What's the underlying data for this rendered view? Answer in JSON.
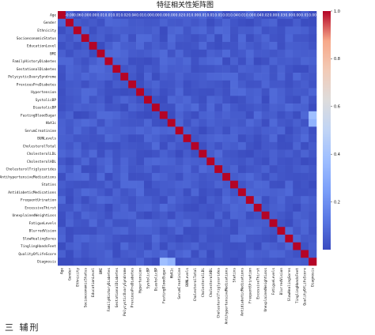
{
  "chart_data": {
    "type": "heatmap",
    "title": "特征相关性矩阵图",
    "labels": [
      "Age",
      "Gender",
      "Ethnicity",
      "SocioeconomicStatus",
      "EducationLevel",
      "BMI",
      "FamilyHistoryDiabetes",
      "GestationalDiabetes",
      "PolycysticOvarySyndrome",
      "PreviousPreDiabetes",
      "Hypertension",
      "SystolicBP",
      "DiastolicBP",
      "FastingBloodSugar",
      "HbA1c",
      "SerumCreatinine",
      "BUNLevels",
      "CholesterolTotal",
      "CholesterolLDL",
      "CholesterolHDL",
      "CholesterolTriglycerides",
      "AntihypertensiveMedications",
      "Statins",
      "AntidiabeticMedications",
      "FrequentUrination",
      "ExcessiveThirst",
      "UnexplainedWeightLoss",
      "FatigueLevels",
      "BlurredVision",
      "SlowHealingSores",
      "TinglingHandsFeet",
      "QualityOfLifeScore",
      "Diagnosis"
    ],
    "diagnosis_correlations": [
      0.0,
      0.0,
      0.02,
      0.01,
      0.02,
      0.05,
      0.06,
      0.04,
      0.03,
      0.02,
      0.07,
      0.02,
      0.0,
      0.38,
      0.33,
      0.01,
      0.02,
      0.04,
      0.03,
      0.01,
      0.03,
      0.02,
      0.0,
      0.02,
      0.05,
      0.04,
      0.03,
      0.03,
      0.02,
      0.04,
      0.05,
      0.04,
      1.0
    ],
    "top_row_annotations": [
      "",
      "-0.00",
      "0.06",
      "0.00",
      "0.00",
      "0.01",
      "0.01",
      "0.01",
      "0.02",
      "0.04",
      "0.01",
      "0.00",
      "0.00",
      "0.00",
      "0.00",
      "0.02",
      "0.01",
      "0.00",
      "0.01",
      "0.01",
      "0.01",
      "0.01",
      "0.04",
      "0.01",
      "0.00",
      "0.04",
      "0.02",
      "0.00",
      "0.03",
      "0.00",
      "0.00",
      "0.01",
      "0.00"
    ],
    "colorbar": {
      "min": 0.0,
      "max": 1.0,
      "ticks": [
        0.2,
        0.4,
        0.6,
        0.8,
        1.0
      ]
    },
    "colormap": "coolwarm",
    "colors": {
      "low": "#3b4cc0",
      "mid": "#dddddd",
      "high": "#b40426"
    }
  },
  "footer": {
    "text": "三   辅刑"
  }
}
